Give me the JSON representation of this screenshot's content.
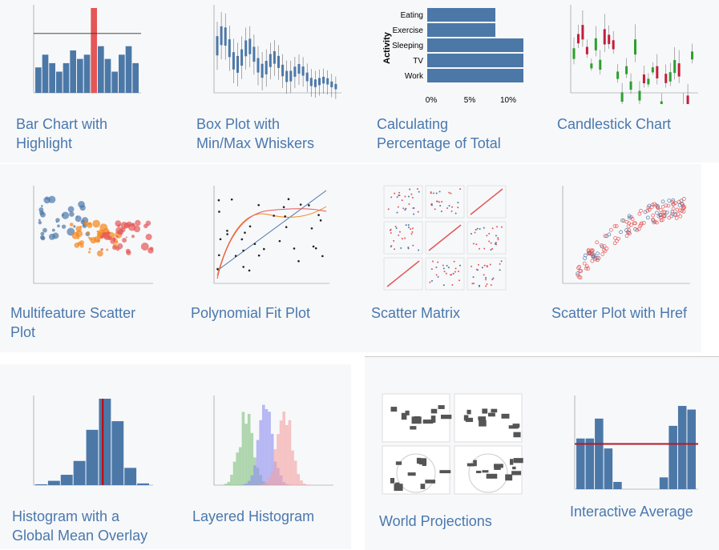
{
  "gallery": {
    "items": [
      {
        "caption": "Bar Chart with Highlight"
      },
      {
        "caption": "Box Plot with Min/Max Whiskers"
      },
      {
        "caption": "Calculating Percentage of Total",
        "thumbnail": {
          "axis_title": "Activity",
          "categories": [
            "Eating",
            "Exercise",
            "Sleeping",
            "TV",
            "Work"
          ],
          "ticks": [
            "0%",
            "5%",
            "10%"
          ]
        }
      },
      {
        "caption": "Candlestick Chart"
      },
      {
        "caption": "Multifeature Scatter Plot"
      },
      {
        "caption": "Polynomial Fit Plot"
      },
      {
        "caption": "Scatter Matrix"
      },
      {
        "caption": "Scatter Plot with Href"
      },
      {
        "caption": "Histogram with a Global Mean Overlay"
      },
      {
        "caption": "Layered Histogram"
      },
      {
        "caption": "World Projections"
      },
      {
        "caption": "Interactive Average"
      }
    ]
  }
}
